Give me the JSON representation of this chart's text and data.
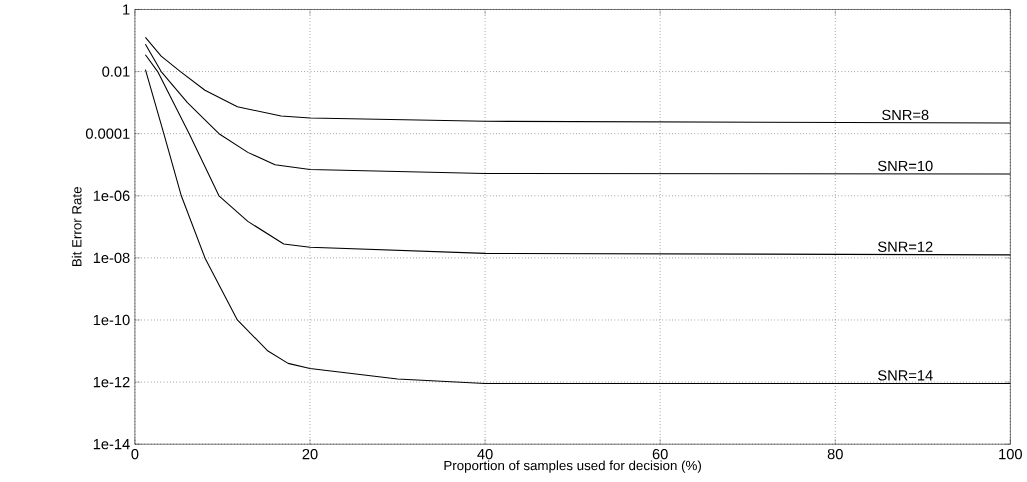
{
  "chart_data": {
    "type": "line",
    "xlabel": "Proportion of samples used for decision (%)",
    "ylabel": "Bit Error Rate",
    "xlim": [
      0,
      100
    ],
    "xticks": [
      0,
      20,
      40,
      60,
      80,
      100
    ],
    "ylim": [
      1e-14,
      1
    ],
    "log": "y",
    "yticks": [
      {
        "value": 1,
        "label": "1"
      },
      {
        "value": 0.01,
        "label": "0.01"
      },
      {
        "value": 0.0001,
        "label": "0.0001"
      },
      {
        "value": 1e-06,
        "label": "1e-06"
      },
      {
        "value": 1e-08,
        "label": "1e-08"
      },
      {
        "value": 1e-10,
        "label": "1e-10"
      },
      {
        "value": 1e-12,
        "label": "1e-12"
      },
      {
        "value": 1e-14,
        "label": "1e-14"
      }
    ],
    "grid": true,
    "line_style": "solid",
    "marker": "none",
    "series": [
      {
        "name": "SNR=8",
        "color": "#000000",
        "x": [
          1.2,
          3,
          5.2,
          8,
          11.7,
          16.7,
          20,
          40,
          100
        ],
        "values": [
          0.126,
          0.0316,
          0.01,
          0.0025,
          0.00074,
          0.00037,
          0.00032,
          0.00025,
          0.00022
        ]
      },
      {
        "name": "SNR=10",
        "color": "#000000",
        "x": [
          1.2,
          3,
          6,
          9.6,
          12.9,
          16,
          20,
          40,
          100
        ],
        "values": [
          0.076,
          0.01,
          0.001,
          0.0001,
          2.5e-05,
          1e-05,
          7e-06,
          5.2e-06,
          5e-06
        ]
      },
      {
        "name": "SNR=12",
        "color": "#000000",
        "x": [
          1.2,
          2.6,
          6.2,
          9.6,
          12.9,
          17,
          20,
          40,
          100
        ],
        "values": [
          0.035,
          0.01,
          0.0001,
          1e-06,
          1.5e-07,
          2.8e-08,
          2.2e-08,
          1.4e-08,
          1.25e-08
        ]
      },
      {
        "name": "SNR=14",
        "color": "#000000",
        "x": [
          1.2,
          3.3,
          5.3,
          8,
          11.7,
          15.2,
          17.5,
          20,
          30,
          40,
          100
        ],
        "values": [
          0.0115,
          0.0001,
          1e-06,
          1e-08,
          1e-10,
          1e-11,
          4e-12,
          2.75e-12,
          1.25e-12,
          9e-13,
          9e-13
        ]
      }
    ]
  }
}
